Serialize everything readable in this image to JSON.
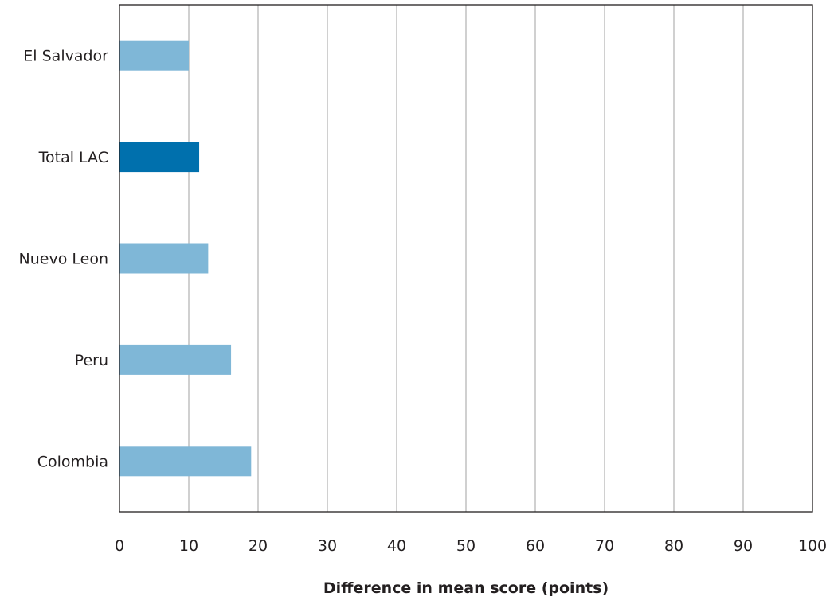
{
  "chart_data": {
    "type": "bar",
    "orientation": "horizontal",
    "categories": [
      "El Salvador",
      "Total LAC",
      "Nuevo Leon",
      "Peru",
      "Colombia"
    ],
    "values": [
      10,
      11.5,
      12.8,
      16.1,
      19
    ],
    "highlight": [
      false,
      true,
      false,
      false,
      false
    ],
    "xlabel": "Difference in mean score (points)",
    "xlim": [
      0,
      100
    ],
    "xticks": [
      0,
      10,
      20,
      30,
      40,
      50,
      60,
      70,
      80,
      90,
      100
    ],
    "grid": "vertical",
    "colors": {
      "bar": "#7fb7d7",
      "highlight": "#0070ad",
      "grid": "#a0a0a0",
      "axis": "#231f20"
    }
  }
}
